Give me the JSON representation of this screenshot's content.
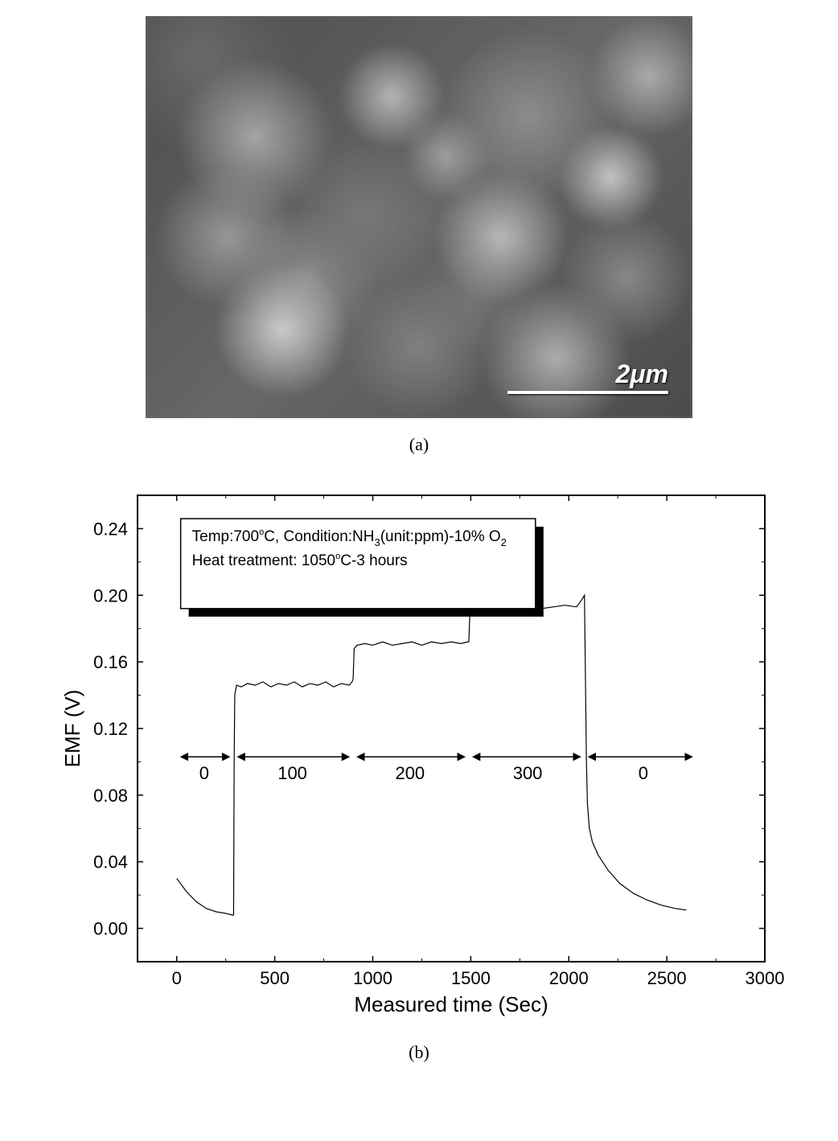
{
  "sem_image": {
    "scale_label": "2μm",
    "scale_bar_color": "#ffffff",
    "background_base": "#6b6b6b"
  },
  "subfig_labels": {
    "a": "(a)",
    "b": "(b)"
  },
  "chart": {
    "type": "line",
    "xlabel": "Measured time (Sec)",
    "ylabel": "EMF (V)",
    "label_fontsize": 26,
    "tick_fontsize": 22,
    "xlim": [
      -200,
      3000
    ],
    "ylim": [
      -0.02,
      0.26
    ],
    "xticks": [
      0,
      500,
      1000,
      1500,
      2000,
      2500,
      3000
    ],
    "yticks": [
      0.0,
      0.04,
      0.08,
      0.12,
      0.16,
      0.2,
      0.24
    ],
    "ytick_labels": [
      "0.00",
      "0.04",
      "0.08",
      "0.12",
      "0.16",
      "0.20",
      "0.24"
    ],
    "line_color": "#000000",
    "line_width": 1.2,
    "background_color": "#ffffff",
    "axis_color": "#000000",
    "condition_box": {
      "line1_prefix": "Temp:700",
      "line1_deg": "o",
      "line1_c": "C, Condition:NH",
      "line1_sub3": "3",
      "line1_mid": "(unit:ppm)-10% O",
      "line1_sub2": "2",
      "line2_prefix": "Heat treatment: 1050",
      "line2_deg": "o",
      "line2_c": "C-3 hours",
      "box_fill": "#ffffff",
      "box_stroke": "#000000",
      "shadow_color": "#000000"
    },
    "level_annotations": [
      {
        "label": "0",
        "x_center": 140,
        "x_from": 0,
        "x_to": 290,
        "y": 0.103
      },
      {
        "label": "100",
        "x_center": 590,
        "x_from": 290,
        "x_to": 900,
        "y": 0.103
      },
      {
        "label": "200",
        "x_center": 1190,
        "x_from": 900,
        "x_to": 1490,
        "y": 0.103
      },
      {
        "label": "300",
        "x_center": 1790,
        "x_from": 1490,
        "x_to": 2080,
        "y": 0.103
      },
      {
        "label": "0",
        "x_center": 2380,
        "x_from": 2080,
        "x_to": 2650,
        "y": 0.103
      }
    ],
    "series": [
      {
        "x": 0,
        "y": 0.03
      },
      {
        "x": 50,
        "y": 0.022
      },
      {
        "x": 100,
        "y": 0.016
      },
      {
        "x": 150,
        "y": 0.012
      },
      {
        "x": 200,
        "y": 0.01
      },
      {
        "x": 250,
        "y": 0.009
      },
      {
        "x": 285,
        "y": 0.008
      },
      {
        "x": 290,
        "y": 0.008
      },
      {
        "x": 293,
        "y": 0.1
      },
      {
        "x": 296,
        "y": 0.14
      },
      {
        "x": 305,
        "y": 0.146
      },
      {
        "x": 330,
        "y": 0.145
      },
      {
        "x": 360,
        "y": 0.147
      },
      {
        "x": 400,
        "y": 0.146
      },
      {
        "x": 440,
        "y": 0.148
      },
      {
        "x": 480,
        "y": 0.145
      },
      {
        "x": 520,
        "y": 0.147
      },
      {
        "x": 560,
        "y": 0.146
      },
      {
        "x": 600,
        "y": 0.148
      },
      {
        "x": 640,
        "y": 0.145
      },
      {
        "x": 680,
        "y": 0.147
      },
      {
        "x": 720,
        "y": 0.146
      },
      {
        "x": 760,
        "y": 0.148
      },
      {
        "x": 800,
        "y": 0.145
      },
      {
        "x": 840,
        "y": 0.147
      },
      {
        "x": 880,
        "y": 0.146
      },
      {
        "x": 895,
        "y": 0.148
      },
      {
        "x": 900,
        "y": 0.15
      },
      {
        "x": 905,
        "y": 0.168
      },
      {
        "x": 920,
        "y": 0.17
      },
      {
        "x": 960,
        "y": 0.171
      },
      {
        "x": 1000,
        "y": 0.17
      },
      {
        "x": 1050,
        "y": 0.172
      },
      {
        "x": 1100,
        "y": 0.17
      },
      {
        "x": 1150,
        "y": 0.171
      },
      {
        "x": 1200,
        "y": 0.172
      },
      {
        "x": 1250,
        "y": 0.17
      },
      {
        "x": 1300,
        "y": 0.172
      },
      {
        "x": 1350,
        "y": 0.171
      },
      {
        "x": 1400,
        "y": 0.172
      },
      {
        "x": 1450,
        "y": 0.171
      },
      {
        "x": 1485,
        "y": 0.172
      },
      {
        "x": 1490,
        "y": 0.172
      },
      {
        "x": 1495,
        "y": 0.188
      },
      {
        "x": 1510,
        "y": 0.191
      },
      {
        "x": 1560,
        "y": 0.19
      },
      {
        "x": 1620,
        "y": 0.192
      },
      {
        "x": 1680,
        "y": 0.191
      },
      {
        "x": 1740,
        "y": 0.192
      },
      {
        "x": 1800,
        "y": 0.193
      },
      {
        "x": 1860,
        "y": 0.192
      },
      {
        "x": 1920,
        "y": 0.193
      },
      {
        "x": 1980,
        "y": 0.194
      },
      {
        "x": 2040,
        "y": 0.193
      },
      {
        "x": 2070,
        "y": 0.198
      },
      {
        "x": 2080,
        "y": 0.2
      },
      {
        "x": 2085,
        "y": 0.15
      },
      {
        "x": 2090,
        "y": 0.1
      },
      {
        "x": 2095,
        "y": 0.075
      },
      {
        "x": 2105,
        "y": 0.06
      },
      {
        "x": 2120,
        "y": 0.052
      },
      {
        "x": 2150,
        "y": 0.044
      },
      {
        "x": 2200,
        "y": 0.035
      },
      {
        "x": 2260,
        "y": 0.027
      },
      {
        "x": 2330,
        "y": 0.021
      },
      {
        "x": 2400,
        "y": 0.017
      },
      {
        "x": 2470,
        "y": 0.014
      },
      {
        "x": 2540,
        "y": 0.012
      },
      {
        "x": 2600,
        "y": 0.011
      }
    ]
  }
}
